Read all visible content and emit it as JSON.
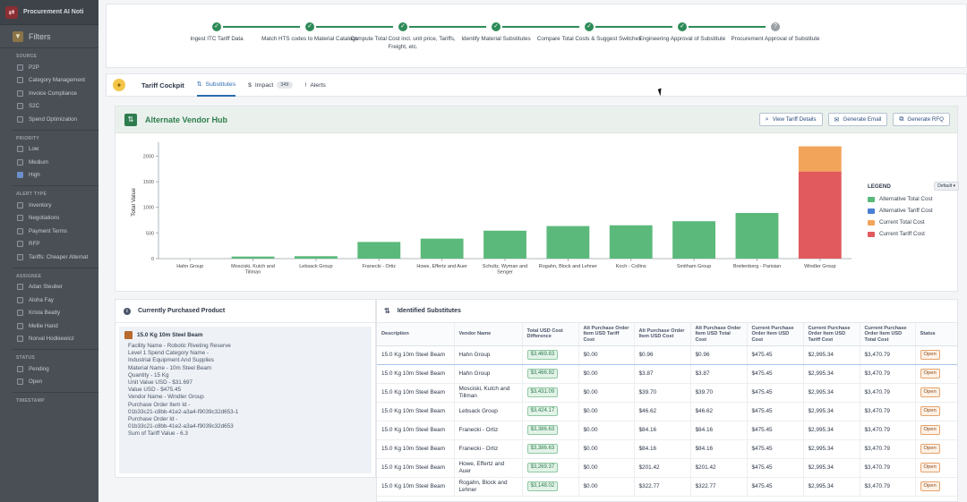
{
  "app": {
    "title": "Procurement AI Noti"
  },
  "filters": {
    "title": "Filters",
    "sections": [
      {
        "label": "SOURCE",
        "items": [
          {
            "label": "P2P",
            "checked": false
          },
          {
            "label": "Category Management",
            "checked": false
          },
          {
            "label": "Invoice Compliance",
            "checked": false
          },
          {
            "label": "S2C",
            "checked": false
          },
          {
            "label": "Spend Optimization",
            "checked": false
          }
        ]
      },
      {
        "label": "PRIORITY",
        "items": [
          {
            "label": "Low",
            "checked": false
          },
          {
            "label": "Medium",
            "checked": false
          },
          {
            "label": "High",
            "checked": true
          }
        ]
      },
      {
        "label": "ALERT TYPE",
        "items": [
          {
            "label": "Inventory",
            "checked": false
          },
          {
            "label": "Negotiations",
            "checked": false
          },
          {
            "label": "Payment Terms",
            "checked": false
          },
          {
            "label": "RFP",
            "checked": false
          },
          {
            "label": "Tariffs: Cheaper Alternat",
            "checked": false
          }
        ]
      },
      {
        "label": "ASSIGNEE",
        "items": [
          {
            "label": "Adan Steuber",
            "checked": false
          },
          {
            "label": "Aloha Fay",
            "checked": false
          },
          {
            "label": "Krista Beatty",
            "checked": false
          },
          {
            "label": "Mellie Hand",
            "checked": false
          },
          {
            "label": "Norval Hodkiewicz",
            "checked": false
          }
        ]
      },
      {
        "label": "STATUS",
        "items": [
          {
            "label": "Pending",
            "checked": false
          },
          {
            "label": "Open",
            "checked": false
          }
        ]
      },
      {
        "label": "TIMESTAMP",
        "items": []
      }
    ]
  },
  "workflow": {
    "steps": [
      {
        "label": "Ingest ITC Tariff Data",
        "done": true
      },
      {
        "label": "Match HTS codes to Material Catalogs",
        "done": true
      },
      {
        "label": "Compute Total Cost incl. unit price, Tariffs, Freight, etc.",
        "done": true
      },
      {
        "label": "Identify Material Substitutes",
        "done": true
      },
      {
        "label": "Compare Total Costs & Suggest Switches",
        "done": true
      },
      {
        "label": "Engineering Approval of Substitute",
        "done": true
      },
      {
        "label": "Procurement Approval of Substitute",
        "done": false
      }
    ]
  },
  "cockpit": {
    "title": "Tariff Cockpit",
    "tabs": [
      {
        "label": "Substitutes",
        "icon": "compare-icon",
        "active": true,
        "badge": ""
      },
      {
        "label": "Impact",
        "icon": "dollar-icon",
        "active": false,
        "badge": "349"
      },
      {
        "label": "Alerts",
        "icon": "exclamation-icon",
        "active": false,
        "badge": ""
      }
    ]
  },
  "hub": {
    "title": "Alternate Vendor Hub",
    "buttons": [
      {
        "label": "View Tariff Details",
        "icon": "search-icon"
      },
      {
        "label": "Generate Email",
        "icon": "mail-icon"
      },
      {
        "label": "Generate RFQ",
        "icon": "document-icon"
      }
    ]
  },
  "legend": {
    "title": "LEGEND",
    "dropdown": "Default",
    "items": [
      {
        "label": "Alternative Total Cost",
        "color": "#5bb97b"
      },
      {
        "label": "Alternative Tariff Cost",
        "color": "#4a7fd4"
      },
      {
        "label": "Current Total Cost",
        "color": "#f2a45a"
      },
      {
        "label": "Current Tariff Cost",
        "color": "#e05a5e"
      }
    ]
  },
  "chart_data": {
    "type": "bar",
    "ylabel": "Total Value",
    "xlabel": "",
    "ylim": [
      0,
      2200
    ],
    "yticks": [
      0,
      500,
      1000,
      1500,
      2000
    ],
    "categories": [
      "Hahn Group",
      "Mosciski, Kutch and Tillman",
      "Lebsack Group",
      "Franecki - Ortiz",
      "Howe, Effertz and Auer",
      "Schultz, Wyman and Senger",
      "Rogahn, Block and Lehner",
      "Koch - Collins",
      "Smitham Group",
      "Breitenberg - Parisian",
      "Windler Group"
    ],
    "series": [
      {
        "name": "Alternative Total Cost",
        "color": "#5bb97b",
        "values": [
          0,
          40,
          47,
          325,
          390,
          545,
          635,
          650,
          730,
          890,
          0
        ]
      },
      {
        "name": "Current Tariff Cost",
        "color": "#e05a5e",
        "values": [
          0,
          0,
          0,
          0,
          0,
          0,
          0,
          0,
          0,
          0,
          1700
        ]
      },
      {
        "name": "Current Total Cost",
        "color": "#f2a45a",
        "values": [
          0,
          0,
          0,
          0,
          0,
          0,
          0,
          0,
          0,
          0,
          490
        ]
      }
    ],
    "legend": "right"
  },
  "product": {
    "header": "Currently Purchased Product",
    "name": "15.0 Kg 10m Steel Beam",
    "lines": [
      "Facility Name - Robotic Riveting Reserve",
      "Level 1 Spend Category Name -",
      "Industrial Equipment And Supplies",
      "Material Name - 10m Steel Beam",
      "Quantity - 15 Kg",
      "Unit Value USD - $31.697",
      "Value USD - $475.45",
      "Vendor Name - Windler Group",
      "Purchase Order Item Id -",
      "01b33c21-c8bb-41e2-a3a4-f9039c32d653-1",
      "Purchase Order Id -",
      "01b33c21-c8bb-41e2-a3a4-f9039c32d653",
      "Sum of Tariff Value - 6.3"
    ]
  },
  "substitutes": {
    "header": "Identified Substitutes",
    "columns": [
      "Description",
      "Vendor Name",
      "Total USD Cost Difference",
      "Alt Purchase Order Item USD Tariff Cost",
      "Alt Purchase Order Item USD Cost",
      "Alt Purchase Order Item USD Total Cost",
      "Current Purchase Order Item USD Cost",
      "Current Purchase Order Item USD Tariff Cost",
      "Current Purchase Order Item USD Total Cost",
      "Status"
    ],
    "rows": [
      [
        "15.0 Kg 10m Steel Beam",
        "Hahn Group",
        "$3,469.83",
        "$0.00",
        "$0.96",
        "$0.96",
        "$475.45",
        "$2,995.34",
        "$3,470.79",
        "Open"
      ],
      [
        "15.0 Kg 10m Steel Beam",
        "Hahn Group",
        "$3,466.92",
        "$0.00",
        "$3.87",
        "$3.87",
        "$475.45",
        "$2,995.34",
        "$3,470.79",
        "Open"
      ],
      [
        "15.0 Kg 10m Steel Beam",
        "Mosciski, Kutch and Tillman",
        "$3,431.09",
        "$0.00",
        "$39.70",
        "$39.70",
        "$475.45",
        "$2,995.34",
        "$3,470.79",
        "Open"
      ],
      [
        "15.0 Kg 10m Steel Beam",
        "Lebsack Group",
        "$3,424.17",
        "$0.00",
        "$46.62",
        "$46.62",
        "$475.45",
        "$2,995.34",
        "$3,470.79",
        "Open"
      ],
      [
        "15.0 Kg 10m Steel Beam",
        "Franecki - Ortiz",
        "$3,386.63",
        "$0.00",
        "$84.16",
        "$84.16",
        "$475.45",
        "$2,995.34",
        "$3,470.79",
        "Open"
      ],
      [
        "15.0 Kg 10m Steel Beam",
        "Franecki - Ortiz",
        "$3,386.63",
        "$0.00",
        "$84.16",
        "$84.16",
        "$475.45",
        "$2,995.34",
        "$3,470.79",
        "Open"
      ],
      [
        "15.0 Kg 10m Steel Beam",
        "Howe, Effertz and Auer",
        "$3,269.37",
        "$0.00",
        "$201.42",
        "$201.42",
        "$475.45",
        "$2,995.34",
        "$3,470.79",
        "Open"
      ],
      [
        "15.0 Kg 10m Steel Beam",
        "Rogahn, Block and Lehner",
        "$3,148.02",
        "$0.00",
        "$322.77",
        "$322.77",
        "$475.45",
        "$2,995.34",
        "$3,470.79",
        "Open"
      ]
    ]
  }
}
